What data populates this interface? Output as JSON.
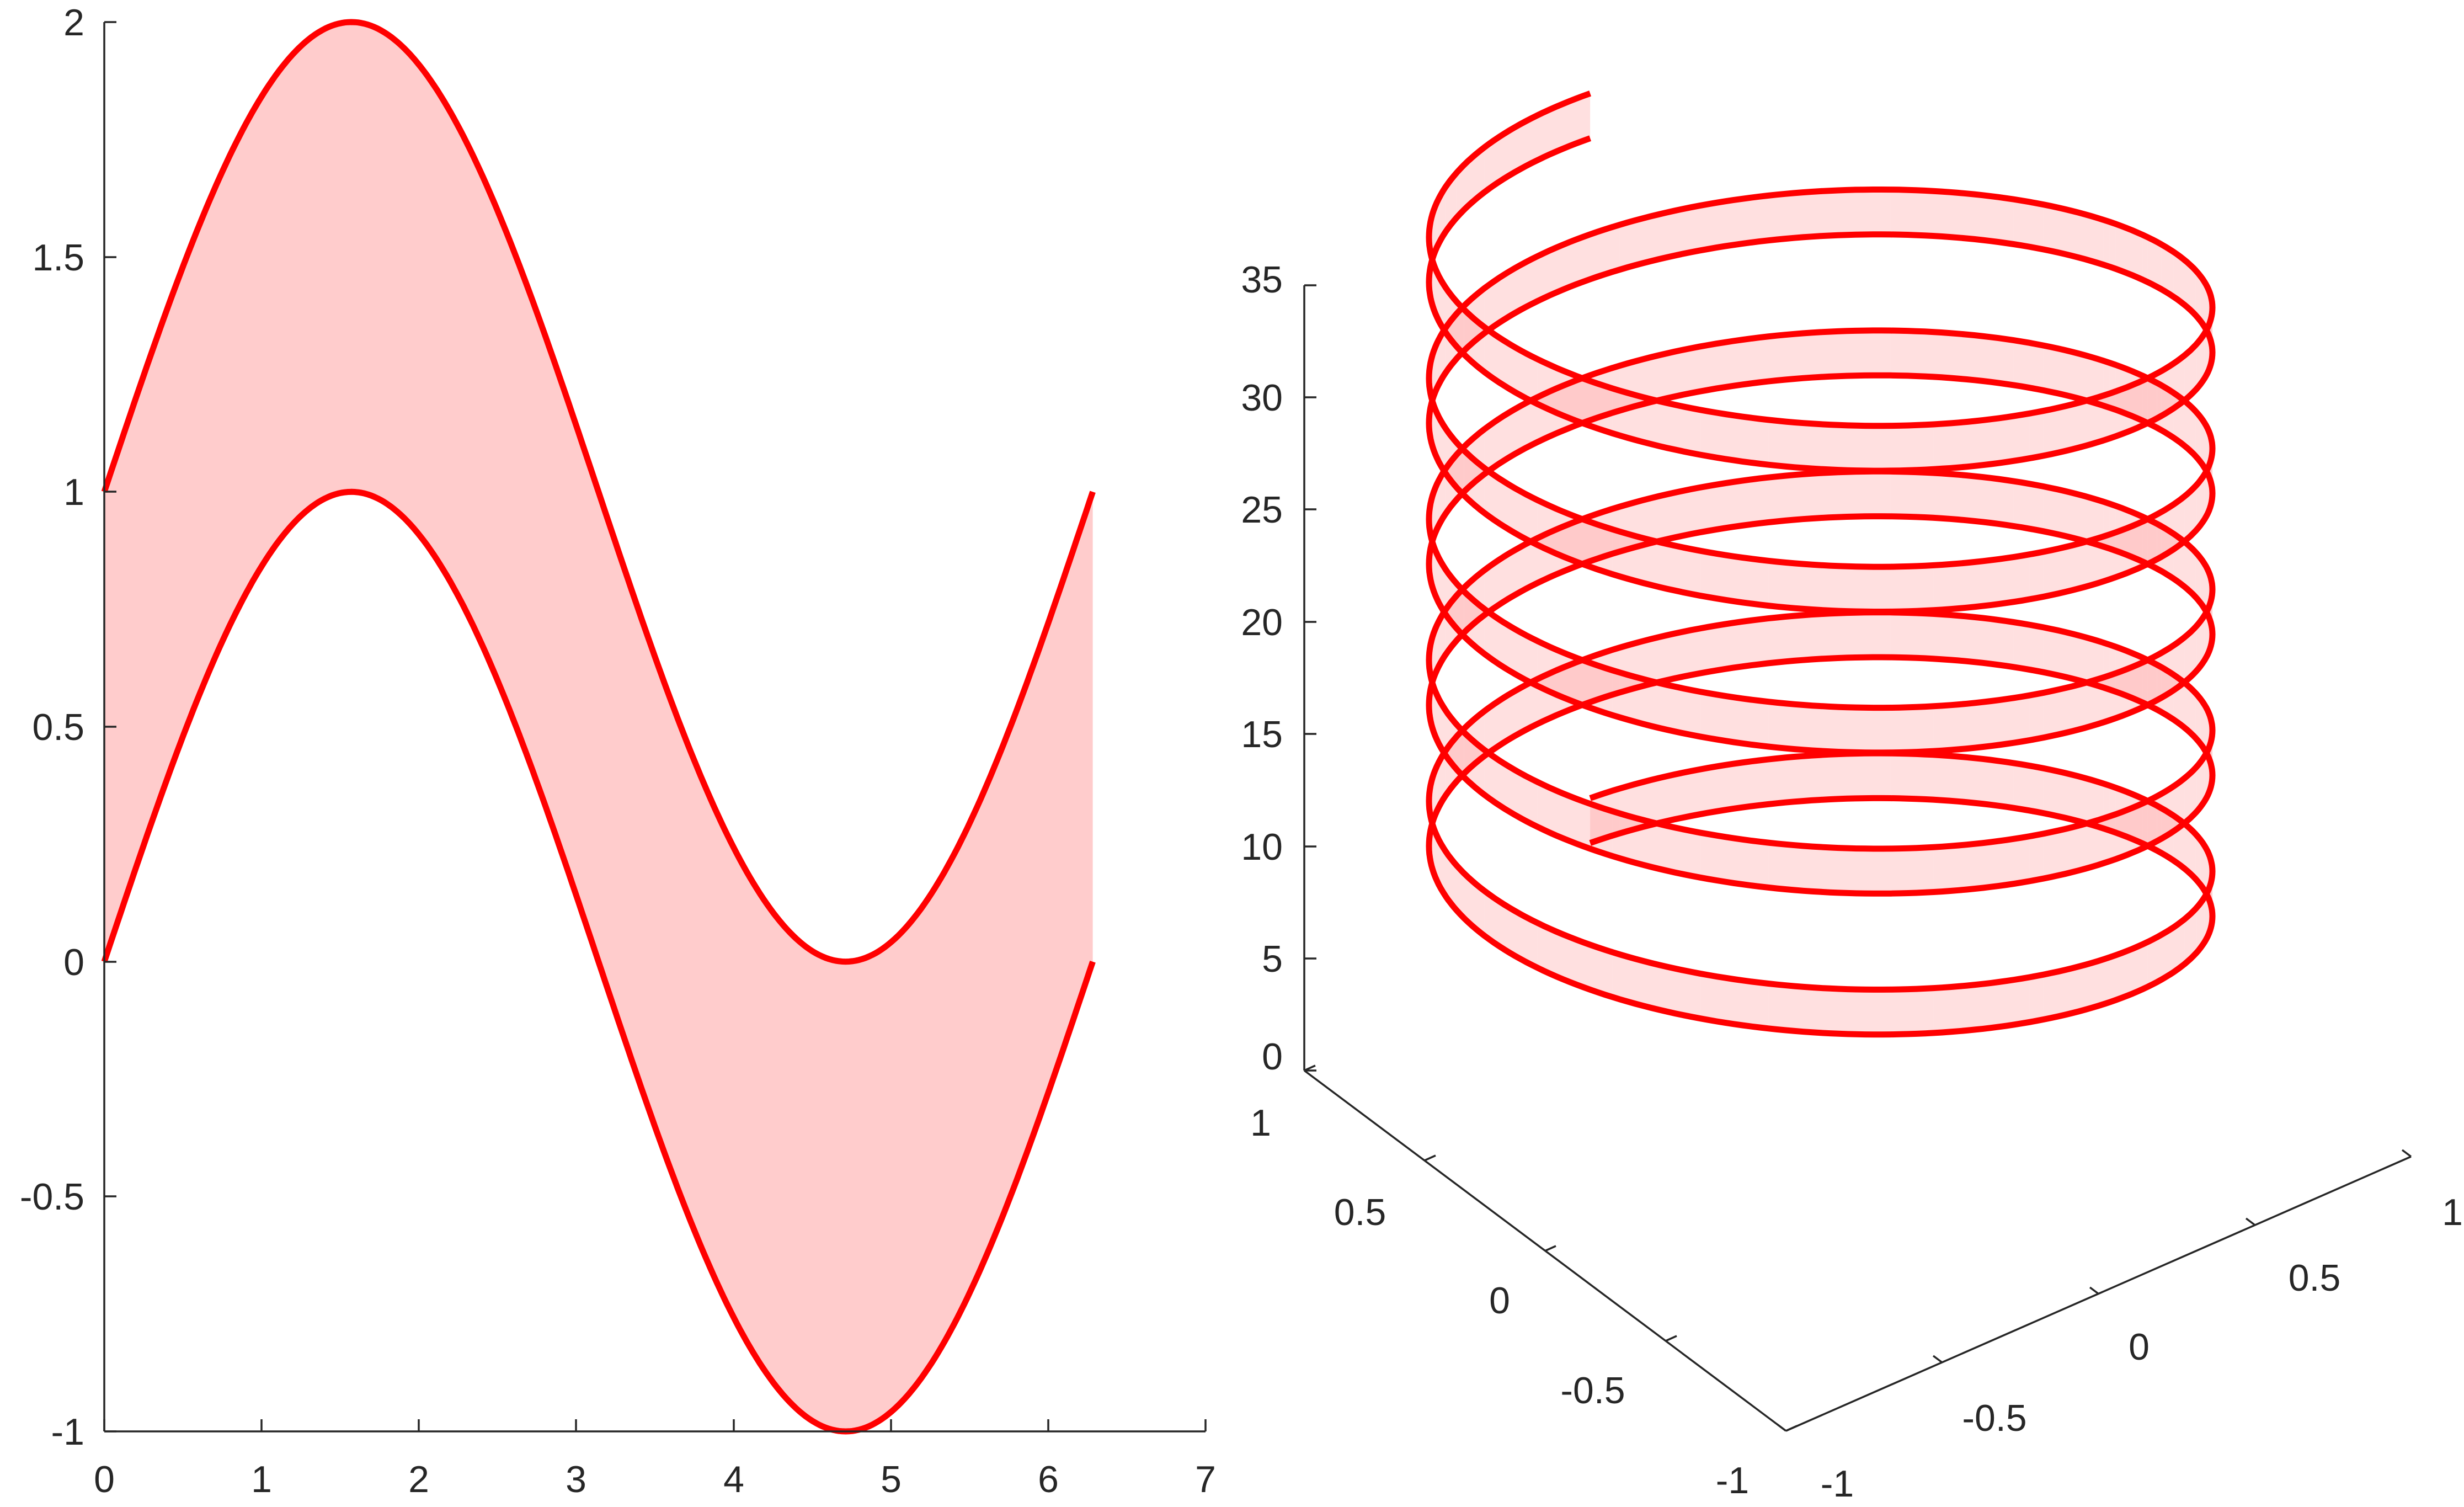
{
  "colors": {
    "line": "#ff0000",
    "fill": "#ff9999",
    "axis": "#262626",
    "background": "#ffffff"
  },
  "chart_data": [
    {
      "type": "area",
      "title": "",
      "xlabel": "",
      "ylabel": "",
      "xlim": [
        0,
        7
      ],
      "ylim": [
        -1,
        2
      ],
      "xticks": [
        "0",
        "1",
        "2",
        "3",
        "4",
        "5",
        "6",
        "7"
      ],
      "yticks": [
        "-1",
        "-0.5",
        "0",
        "0.5",
        "1",
        "1.5",
        "2"
      ],
      "x_range": [
        0,
        6.2832
      ],
      "series": [
        {
          "function": "y = sin(x) + 1",
          "x": [
            0,
            0.785,
            1.571,
            2.356,
            3.142,
            3.927,
            4.712,
            5.498,
            6.283
          ],
          "values": [
            1,
            1.707,
            2,
            1.707,
            1,
            0.293,
            0,
            0.293,
            1
          ]
        },
        {
          "function": "y = sin(x)",
          "x": [
            0,
            0.785,
            1.571,
            2.356,
            3.142,
            3.927,
            4.712,
            5.498,
            6.283
          ],
          "values": [
            0,
            0.707,
            1,
            0.707,
            0,
            -0.707,
            -1,
            -0.707,
            0
          ]
        }
      ],
      "fill_between_series": true,
      "fill_alpha": 0.5,
      "grid": false,
      "box": "off"
    },
    {
      "type": "area",
      "projection": "3d",
      "title": "",
      "xlim": [
        -1,
        1
      ],
      "ylim": [
        -1,
        1
      ],
      "zlim": [
        0,
        35
      ],
      "xticks": [
        "-1",
        "-0.5",
        "0",
        "0.5",
        "1"
      ],
      "yticks": [
        "-1",
        "-0.5",
        "0",
        "0.5",
        "1"
      ],
      "zticks": [
        "0",
        "5",
        "10",
        "15",
        "20",
        "25",
        "30",
        "35"
      ],
      "series": [
        {
          "parametric": "x = cos(t), y = sin(t), z = t",
          "t_range": [
            0,
            31.416
          ]
        },
        {
          "parametric": "x = cos(t), y = sin(t), z = t + 2",
          "t_range": [
            0,
            31.416
          ]
        }
      ],
      "turns": 5,
      "fill_between_series": true,
      "fill_alpha": 0.3,
      "grid": false,
      "view": "default 3-D (azimuth -37.5, elevation 30)"
    }
  ]
}
